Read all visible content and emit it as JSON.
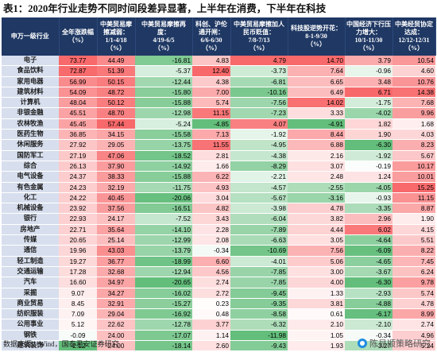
{
  "title": "表1：2020年行业走势不同时间段差异显著，上半年在消费，下半年在科技",
  "headers": [
    "申万一级行业",
    "全年涨跌幅\n（%）",
    "中美贸易摩擦减弱：\n1/1-4/18\n（%）",
    "中美贸易摩擦再度：\n4/19-6/5\n（%）",
    "科创、沪伦通开闸：\n6/6-6/30\n（%）",
    "中美贸易摩擦加人民币贬值：\n7/8-7/13\n（%）",
    "科技股逆势开花：\n8-1-9/30\n（%）",
    "中国经济下行压力增大：\n10/1-11/30\n（%）",
    "中美经贸协定达成：\n12/12-12/31\n（%）"
  ],
  "rows": [
    [
      "电子",
      "73.77",
      "44.49",
      "-16.81",
      "4.83",
      "4.79",
      "14.70",
      "3.79",
      "10.54"
    ],
    [
      "食品饮料",
      "72.87",
      "51.39",
      "-5.37",
      "12.40",
      "-3.73",
      "7.64",
      "-0.96",
      "4.60"
    ],
    [
      "家用电器",
      "56.99",
      "50.15",
      "-12.44",
      "4.38",
      "-6.81",
      "6.65",
      "3.48",
      "10.76"
    ],
    [
      "建筑材料",
      "54.09",
      "48.72",
      "-15.80",
      "7.00",
      "-10.16",
      "6.49",
      "6.71",
      "14.38"
    ],
    [
      "计算机",
      "48.04",
      "50.12",
      "-15.88",
      "5.74",
      "-7.56",
      "14.02",
      "-1.75",
      "7.68"
    ],
    [
      "非银金融",
      "45.51",
      "48.70",
      "-12.98",
      "11.15",
      "-7.23",
      "3.33",
      "-4.02",
      "9.96"
    ],
    [
      "农林牧渔",
      "45.45",
      "57.44",
      "-5.24",
      "-4.85",
      "4.07",
      "-4.91",
      "1.82",
      "1.68"
    ],
    [
      "医药生物",
      "36.85",
      "34.15",
      "-15.58",
      "7.13",
      "-1.92",
      "8.44",
      "1.90",
      "4.03"
    ],
    [
      "休闲服务",
      "27.92",
      "29.05",
      "-13.75",
      "11.55",
      "-4.95",
      "6.88",
      "-6.30",
      "8.23"
    ],
    [
      "国防军工",
      "27.19",
      "47.06",
      "-18.52",
      "2.81",
      "-4.38",
      "2.16",
      "-1.92",
      "5.67"
    ],
    [
      "综合",
      "26.13",
      "37.90",
      "-14.92",
      "1.66",
      "-8.29",
      "3.07",
      "-0.19",
      "10.17"
    ],
    [
      "电气设备",
      "24.37",
      "38.33",
      "-15.88",
      "6.22",
      "-2.21",
      "2.48",
      "1.24",
      "10.01"
    ],
    [
      "有色金属",
      "24.23",
      "32.19",
      "-11.75",
      "4.93",
      "-4.57",
      "-2.55",
      "-4.05",
      "15.25"
    ],
    [
      "化工",
      "24.22",
      "40.45",
      "-20.06",
      "3.04",
      "-5.67",
      "-3.16",
      "-0.93",
      "11.15"
    ],
    [
      "机械设备",
      "23.92",
      "37.56",
      "-16.51",
      "4.82",
      "-3.98",
      "4.78",
      "-3.35",
      "8.87"
    ],
    [
      "银行",
      "22.93",
      "24.17",
      "-7.52",
      "3.43",
      "-6.04",
      "3.82",
      "2.96",
      "1.90"
    ],
    [
      "房地产",
      "22.71",
      "35.64",
      "-14.10",
      "2.28",
      "-7.89",
      "4.44",
      "6.02",
      "4.15"
    ],
    [
      "传媒",
      "20.65",
      "25.14",
      "-12.99",
      "2.08",
      "-6.63",
      "3.05",
      "-4.64",
      "5.51"
    ],
    [
      "通信",
      "19.96",
      "43.03",
      "-13.79",
      "-0.34",
      "-10.69",
      "7.56",
      "-6.09",
      "8.22"
    ],
    [
      "轻工制造",
      "19.27",
      "36.77",
      "-18.99",
      "6.60",
      "-4.01",
      "5.06",
      "-4.65",
      "7.45"
    ],
    [
      "交通运输",
      "17.28",
      "32.68",
      "-12.94",
      "4.56",
      "-7.85",
      "3.00",
      "-3.67",
      "6.24"
    ],
    [
      "汽车",
      "16.60",
      "34.97",
      "-20.65",
      "2.74",
      "-7.85",
      "4.00",
      "-6.30",
      "9.78"
    ],
    [
      "采掘",
      "9.07",
      "34.27",
      "-16.02",
      "2.72",
      "-9.45",
      "1.33",
      "-2.93",
      "5.74"
    ],
    [
      "商业贸易",
      "8.45",
      "32.91",
      "-15.27",
      "0.23",
      "-9.35",
      "3.81",
      "-4.88",
      "4.78"
    ],
    [
      "纺织服装",
      "7.09",
      "29.04",
      "-16.92",
      "0.48",
      "-8.58",
      "0.61",
      "-6.17",
      "8.99"
    ],
    [
      "公用事业",
      "5.12",
      "22.62",
      "-12.78",
      "3.77",
      "-6.32",
      "2.10",
      "-2.10",
      "2.74"
    ],
    [
      "钢铁",
      "-0.09",
      "24.00",
      "-17.07",
      "1.14",
      "-11.98",
      "1.05",
      "-0.34",
      "4.96"
    ],
    [
      "建筑装饰",
      "-2.12",
      "24.00",
      "-18.14",
      "2.60",
      "-9.43",
      "1.93",
      "-3.27",
      "5.24"
    ]
  ],
  "source": "数据来源：Wind，国泰君安证券研究",
  "watermark": "陈显顺策略研究",
  "colors": {
    "header_bg": "#1f3864",
    "industry_bg": "#d7dfee",
    "positive": "#f8696b",
    "negative": "#63be7b",
    "neutral": "#ffffff"
  }
}
